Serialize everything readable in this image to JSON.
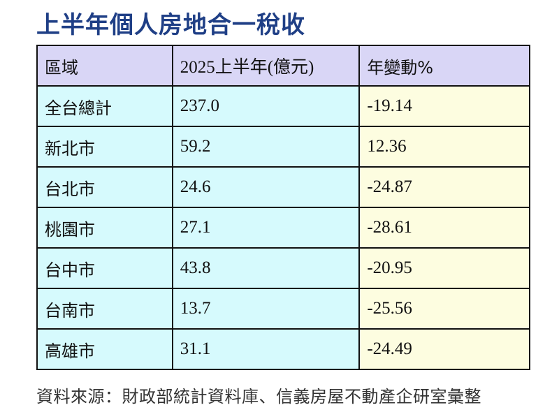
{
  "title": "上半年個人房地合一稅收",
  "table": {
    "headers": [
      "區域",
      "2025上半年(億元)",
      "年變動%"
    ],
    "rows": [
      {
        "region": "全台總計",
        "amount": "237.0",
        "change": "-19.14"
      },
      {
        "region": "新北市",
        "amount": "59.2",
        "change": "12.36"
      },
      {
        "region": "台北市",
        "amount": "24.6",
        "change": "-24.87"
      },
      {
        "region": "桃園市",
        "amount": "27.1",
        "change": "-28.61"
      },
      {
        "region": "台中市",
        "amount": "43.8",
        "change": "-20.95"
      },
      {
        "region": "台南市",
        "amount": "13.7",
        "change": "-25.56"
      },
      {
        "region": "高雄市",
        "amount": "31.1",
        "change": "-24.49"
      }
    ]
  },
  "source": "資料來源：財政部統計資料庫、信義房屋不動產企研室彙整",
  "colors": {
    "title": "#1f3f86",
    "header_bg": "#d9d6f6",
    "cyan_cell_bg": "#d6fafd",
    "yellow_cell_bg": "#fdfde0"
  }
}
